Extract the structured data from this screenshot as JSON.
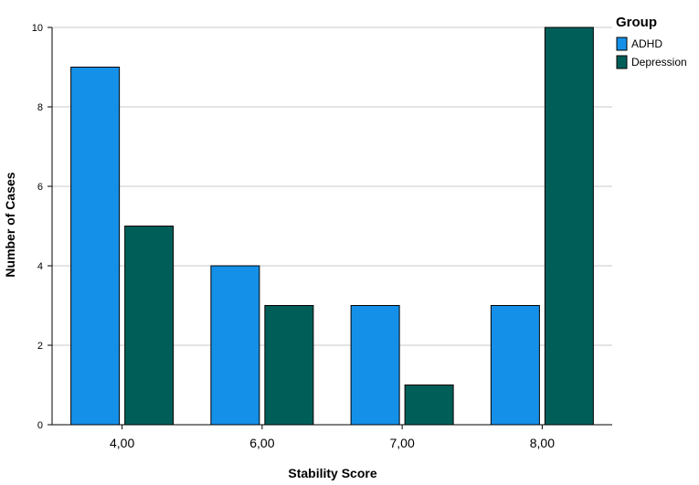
{
  "chart_data": {
    "type": "bar",
    "categories": [
      "4,00",
      "6,00",
      "7,00",
      "8,00"
    ],
    "series": [
      {
        "name": "ADHD",
        "values": [
          9,
          4,
          3,
          3
        ],
        "color": "#1590e8"
      },
      {
        "name": "Depression",
        "values": [
          5,
          3,
          1,
          10
        ],
        "color": "#005e59"
      }
    ],
    "xlabel": "Stability Score",
    "ylabel": "Number of Cases",
    "ylim": [
      0,
      10
    ],
    "yticks": [
      0,
      2,
      4,
      6,
      8,
      10
    ],
    "grid": true,
    "legend": {
      "title": "Group",
      "placement": "top-right"
    }
  }
}
